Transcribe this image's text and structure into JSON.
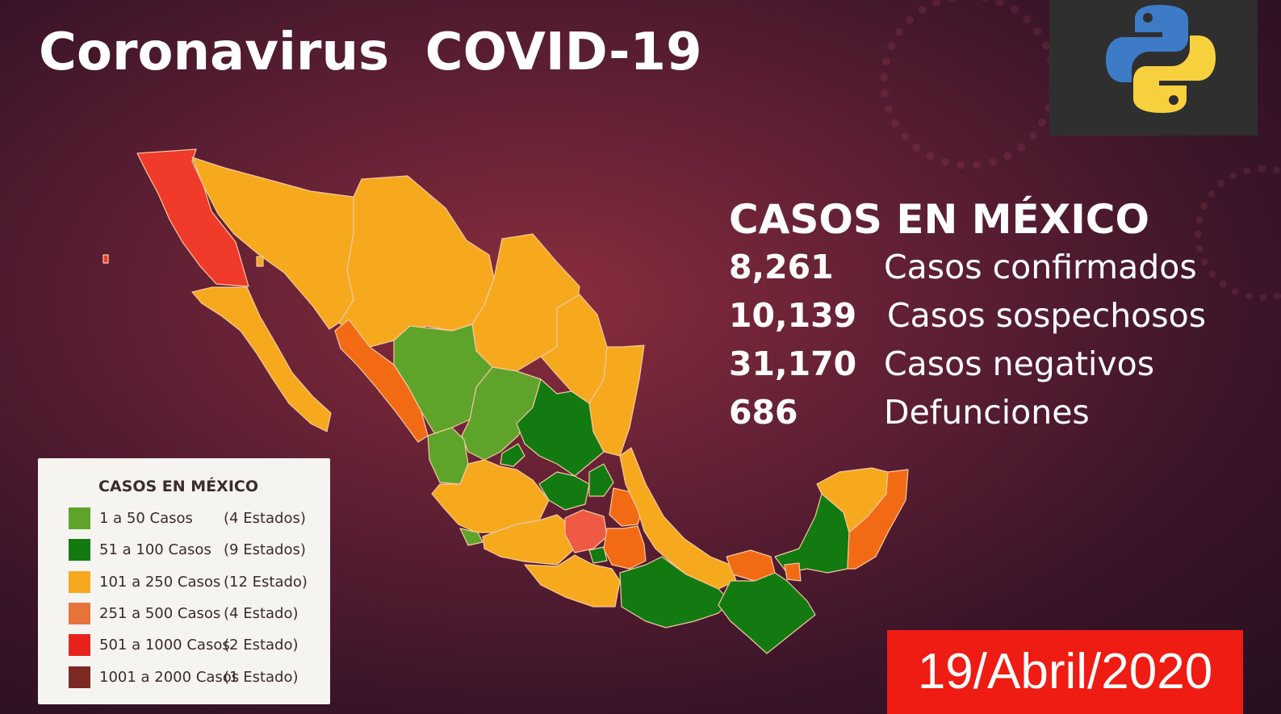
{
  "title": "Coronavirus  COVID-19",
  "python_logo_icon": "python-logo-icon",
  "stats": {
    "heading": "CASOS EN MÉXICO",
    "rows": [
      {
        "value": "8,261",
        "label": "Casos confirmados"
      },
      {
        "value": "10,139",
        "label": "Casos sospechosos"
      },
      {
        "value": "31,170",
        "label": "Casos negativos"
      },
      {
        "value": "686",
        "label": "Defunciones"
      }
    ]
  },
  "legend": {
    "title": "CASOS EN MÉXICO",
    "items": [
      {
        "range": "1 a 50 Casos",
        "count": "(4 Estados)",
        "color": "#5ea42b"
      },
      {
        "range": "51 a 100 Casos",
        "count": "(9 Estados)",
        "color": "#137a12"
      },
      {
        "range": "101 a 250 Casos",
        "count": "(12 Estado)",
        "color": "#f7a91e"
      },
      {
        "range": "251 a 500 Casos",
        "count": "(4 Estado)",
        "color": "#e8733a"
      },
      {
        "range": "501 a 1000 Casos",
        "count": "(2 Estado)",
        "color": "#e8231d"
      },
      {
        "range": "1001 a 2000 Casos",
        "count": "(1 Estado)",
        "color": "#7d2a26"
      }
    ]
  },
  "date": "19/Abril/2020",
  "colors": {
    "green_light": "#5ea42b",
    "green_dark": "#137a12",
    "orange_light": "#f7a91e",
    "orange": "#f26b14",
    "red": "#f03a2a",
    "red_salmon": "#ef5a45"
  }
}
